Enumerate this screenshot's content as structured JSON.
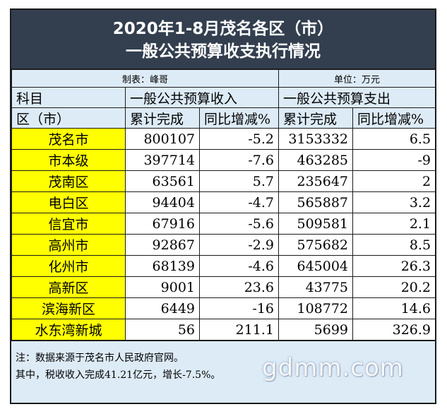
{
  "title": {
    "line1": "2020年1-8月茂名各区（市）",
    "line2": "一般公共预算收支执行情况"
  },
  "meta": {
    "maker": "制表：峰哥",
    "unit": "单位：万元"
  },
  "header": {
    "row1": [
      "科目",
      "一般公共预算收入",
      "一般公共预算支出"
    ],
    "row2": [
      "区（市）",
      "累计完成",
      "同比增减%",
      "累计完成",
      "同比增减%"
    ]
  },
  "rows": [
    {
      "name": "茂名市",
      "income": "800107",
      "income_yoy": "-5.2",
      "expense": "3153332",
      "expense_yoy": "6.5"
    },
    {
      "name": "市本级",
      "income": "397714",
      "income_yoy": "-7.6",
      "expense": "463285",
      "expense_yoy": "-9"
    },
    {
      "name": "茂南区",
      "income": "63561",
      "income_yoy": "5.7",
      "expense": "235647",
      "expense_yoy": "2"
    },
    {
      "name": "电白区",
      "income": "94404",
      "income_yoy": "-4.7",
      "expense": "565887",
      "expense_yoy": "3.2"
    },
    {
      "name": "信宜市",
      "income": "67916",
      "income_yoy": "-5.6",
      "expense": "509581",
      "expense_yoy": "2.1"
    },
    {
      "name": "高州市",
      "income": "92867",
      "income_yoy": "-2.9",
      "expense": "575682",
      "expense_yoy": "8.5"
    },
    {
      "name": "化州市",
      "income": "68139",
      "income_yoy": "-4.6",
      "expense": "645004",
      "expense_yoy": "26.3"
    },
    {
      "name": "高新区",
      "income": "9001",
      "income_yoy": "23.6",
      "expense": "43775",
      "expense_yoy": "20.2"
    },
    {
      "name": "滨海新区",
      "income": "6449",
      "income_yoy": "-16",
      "expense": "108772",
      "expense_yoy": "14.6"
    },
    {
      "name": "水东湾新城",
      "income": "56",
      "income_yoy": "211.1",
      "expense": "5699",
      "expense_yoy": "326.9"
    }
  ],
  "notes": {
    "line1": "注：数据来源于茂名市人民政府官网。",
    "line2": "其中，税收收入完成41.21亿元，增长-7.5%。"
  },
  "watermark": "gdmm.com",
  "colors": {
    "title_bg": "#333f4f",
    "header_bg": "#ddebf7",
    "highlight": "#ffff00"
  }
}
